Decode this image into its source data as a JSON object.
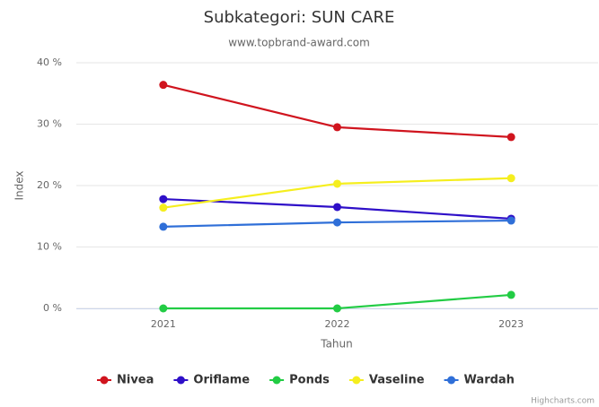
{
  "chart_data": {
    "type": "line",
    "title": "Subkategori: SUN CARE",
    "subtitle": "www.topbrand-award.com",
    "x_label": "Tahun",
    "y_label": "Index",
    "credit": "Highcharts.com",
    "categories": [
      "2021",
      "2022",
      "2023"
    ],
    "series": [
      {
        "name": "Nivea",
        "color": "#d0141e",
        "values": [
          36.4,
          29.5,
          27.9
        ]
      },
      {
        "name": "Oriflame",
        "color": "#2e0fc8",
        "values": [
          17.8,
          16.5,
          14.6
        ]
      },
      {
        "name": "Ponds",
        "color": "#22cc44",
        "values": [
          0,
          0,
          2.2
        ]
      },
      {
        "name": "Vaseline",
        "color": "#f5ee1e",
        "values": [
          16.4,
          20.3,
          21.2
        ]
      },
      {
        "name": "Wardah",
        "color": "#2f6fd8",
        "values": [
          13.3,
          14.0,
          14.3
        ]
      }
    ],
    "ylim": [
      0,
      40
    ],
    "yticks": [
      {
        "value": 0,
        "label": "0 %"
      },
      {
        "value": 10,
        "label": "10 %"
      },
      {
        "value": 20,
        "label": "20 %"
      },
      {
        "value": 30,
        "label": "30 %"
      },
      {
        "value": 40,
        "label": "40 %"
      }
    ],
    "grid": true,
    "legend": "bottom"
  }
}
